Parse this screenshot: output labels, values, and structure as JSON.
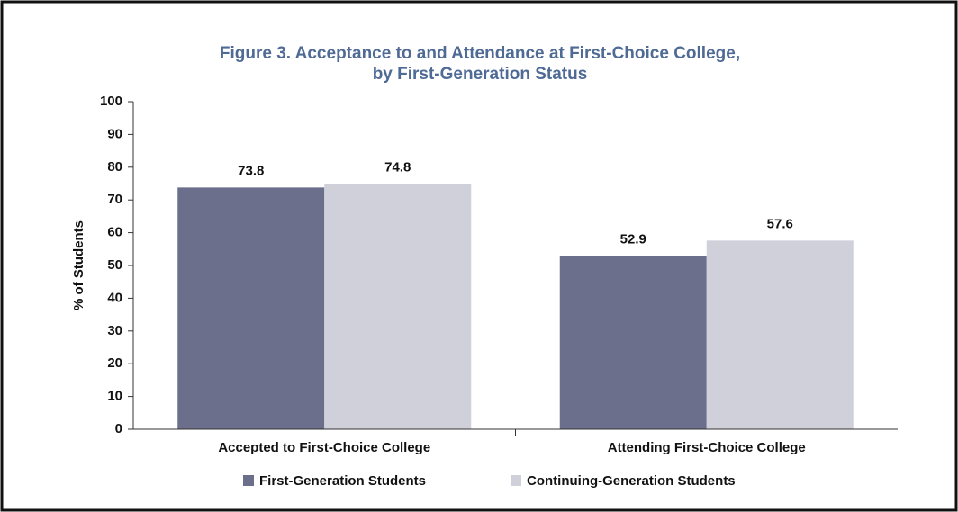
{
  "chart_data": {
    "type": "bar",
    "title": [
      "Figure 3. Acceptance to and Attendance at First-Choice College,",
      "by First-Generation Status"
    ],
    "ylabel": "% of Students",
    "categories": [
      "Accepted to First-Choice College",
      "Attending First-Choice College"
    ],
    "series": [
      {
        "name": "First-Generation Students",
        "color": "#6b6f8c",
        "values": [
          73.8,
          52.9
        ]
      },
      {
        "name": "Continuing-Generation Students",
        "color": "#d0d0da",
        "values": [
          74.8,
          57.6
        ]
      }
    ],
    "ylim": [
      0,
      100
    ],
    "yticks": [
      0,
      10,
      20,
      30,
      40,
      50,
      60,
      70,
      80,
      90,
      100
    ],
    "grid": false,
    "legend": "bottom"
  }
}
